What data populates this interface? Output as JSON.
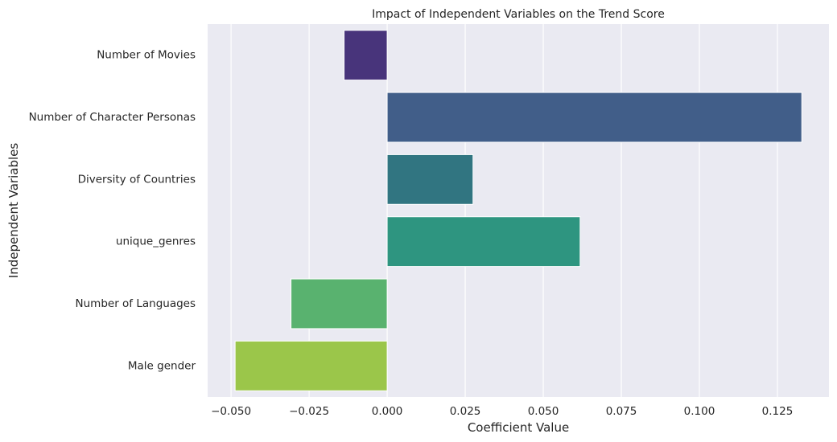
{
  "chart_data": {
    "type": "bar",
    "orientation": "horizontal",
    "title": "Impact of Independent Variables on the Trend Score",
    "xlabel": "Coefficient Value",
    "ylabel": "Independent Variables",
    "categories": [
      "Number of Movies",
      "Number of Character Personas",
      "Diversity of Countries",
      "unique_genres",
      "Number of Languages",
      "Male gender"
    ],
    "values": [
      -0.0138,
      0.1328,
      0.0275,
      0.0618,
      -0.0308,
      -0.0487
    ],
    "colors": [
      "#48347b",
      "#415e89",
      "#317581",
      "#2e9580",
      "#59b26f",
      "#9bc64a"
    ],
    "xlim": [
      -0.0575,
      0.1415
    ],
    "xticks": [
      -0.05,
      -0.025,
      0.0,
      0.025,
      0.05,
      0.075,
      0.1,
      0.125
    ],
    "xtick_labels": [
      "−0.050",
      "−0.025",
      "0.000",
      "0.025",
      "0.050",
      "0.075",
      "0.100",
      "0.125"
    ],
    "grid": true,
    "background": "#eaeaf2",
    "grid_color": "#ffffff"
  }
}
